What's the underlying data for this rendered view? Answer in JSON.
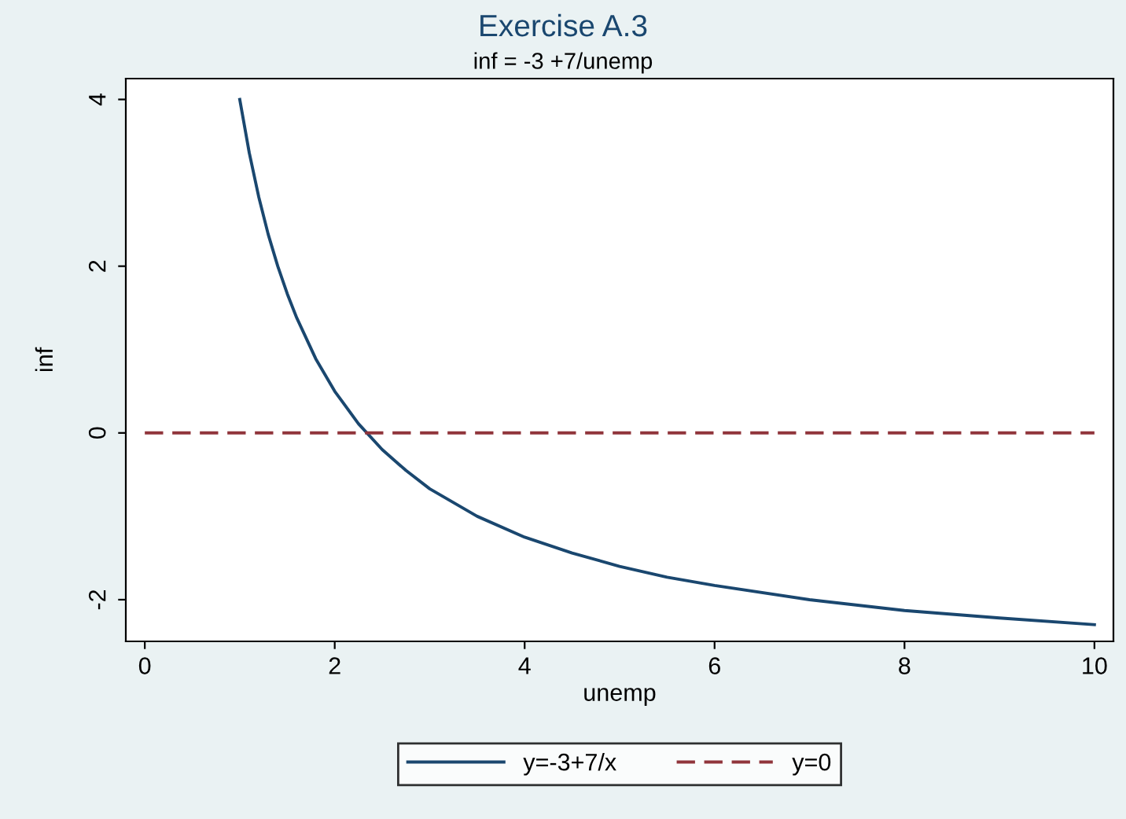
{
  "chart_data": {
    "type": "line",
    "title": "Exercise A.3",
    "subtitle": "inf = -3 +7/unemp",
    "xlabel": "unemp",
    "ylabel": "inf",
    "xlim": [
      -0.2,
      10.2
    ],
    "ylim": [
      -2.5,
      4.25
    ],
    "xticks": [
      0,
      2,
      4,
      6,
      8,
      10
    ],
    "yticks": [
      -2,
      0,
      2,
      4
    ],
    "grid": false,
    "legend": "bottom",
    "marker": "none",
    "series": [
      {
        "name": "y=-3+7/x",
        "color": "#1a476f",
        "line_style": "solid",
        "x": [
          1,
          1.1,
          1.2,
          1.3,
          1.4,
          1.5,
          1.6,
          1.8,
          2,
          2.25,
          2.5,
          2.75,
          3,
          3.5,
          4,
          4.5,
          5,
          5.5,
          6,
          7,
          8,
          9,
          10
        ],
        "values": [
          4,
          3.36,
          2.83,
          2.38,
          2,
          1.67,
          1.38,
          0.89,
          0.5,
          0.11,
          -0.2,
          -0.45,
          -0.67,
          -1,
          -1.25,
          -1.44,
          -1.6,
          -1.73,
          -1.83,
          -2,
          -2.13,
          -2.22,
          -2.3
        ]
      },
      {
        "name": "y=0",
        "color": "#90353b",
        "line_style": "dashed",
        "x": [
          0,
          10
        ],
        "values": [
          0,
          0
        ]
      }
    ]
  }
}
